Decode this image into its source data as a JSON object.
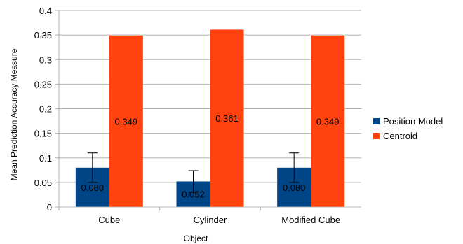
{
  "chart_data": {
    "type": "bar",
    "title": "",
    "xlabel": "Object",
    "ylabel": "Mean Prediction Accuracy Measure",
    "categories": [
      "Cube",
      "Cylinder",
      "Modified Cube"
    ],
    "ylim": [
      0,
      0.4
    ],
    "yticks": [
      0,
      0.05,
      0.1,
      0.15,
      0.2,
      0.25,
      0.3,
      0.35,
      0.4
    ],
    "ytick_labels": [
      "0",
      "0.05",
      "0.1",
      "0.15",
      "0.2",
      "0.25",
      "0.3",
      "0.35",
      "0.4"
    ],
    "grid": true,
    "legend_position": "right",
    "series": [
      {
        "name": "Position Model",
        "color": "#004586",
        "values": [
          0.08,
          0.052,
          0.08
        ],
        "labels": [
          "0.080",
          "0.052",
          "0.080"
        ],
        "error": [
          0.03,
          0.022,
          0.03
        ]
      },
      {
        "name": "Centroid",
        "color": "#ff420e",
        "values": [
          0.349,
          0.361,
          0.349
        ],
        "labels": [
          "0.349",
          "0.361",
          "0.349"
        ]
      }
    ]
  }
}
